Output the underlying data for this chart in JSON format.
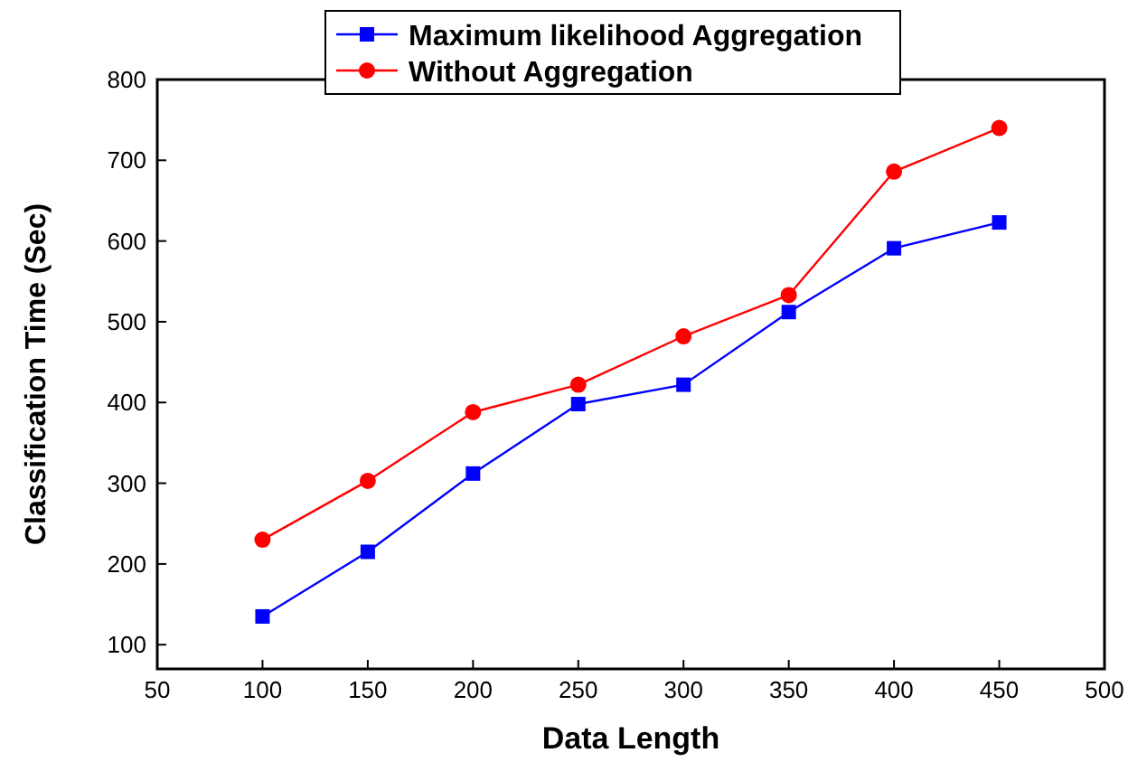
{
  "chart_data": {
    "type": "line",
    "xlabel": "Data Length",
    "ylabel": "Classification Time (Sec)",
    "x": [
      100,
      150,
      200,
      250,
      300,
      350,
      400,
      450
    ],
    "series": [
      {
        "name": "Maximum likelihood Aggregation",
        "color": "#0000ff",
        "marker": "square",
        "values": [
          135,
          215,
          312,
          398,
          422,
          512,
          591,
          623
        ]
      },
      {
        "name": "Without Aggregation",
        "color": "#ff0000",
        "marker": "circle",
        "values": [
          230,
          303,
          388,
          422,
          482,
          533,
          686,
          740
        ]
      }
    ],
    "xlim": [
      50,
      500
    ],
    "xticks": [
      50,
      100,
      150,
      200,
      250,
      300,
      350,
      400,
      450,
      500
    ],
    "ylim": [
      70,
      800
    ],
    "yticks": [
      100,
      200,
      300,
      400,
      500,
      600,
      700,
      800
    ],
    "grid": false,
    "legend": "top"
  }
}
